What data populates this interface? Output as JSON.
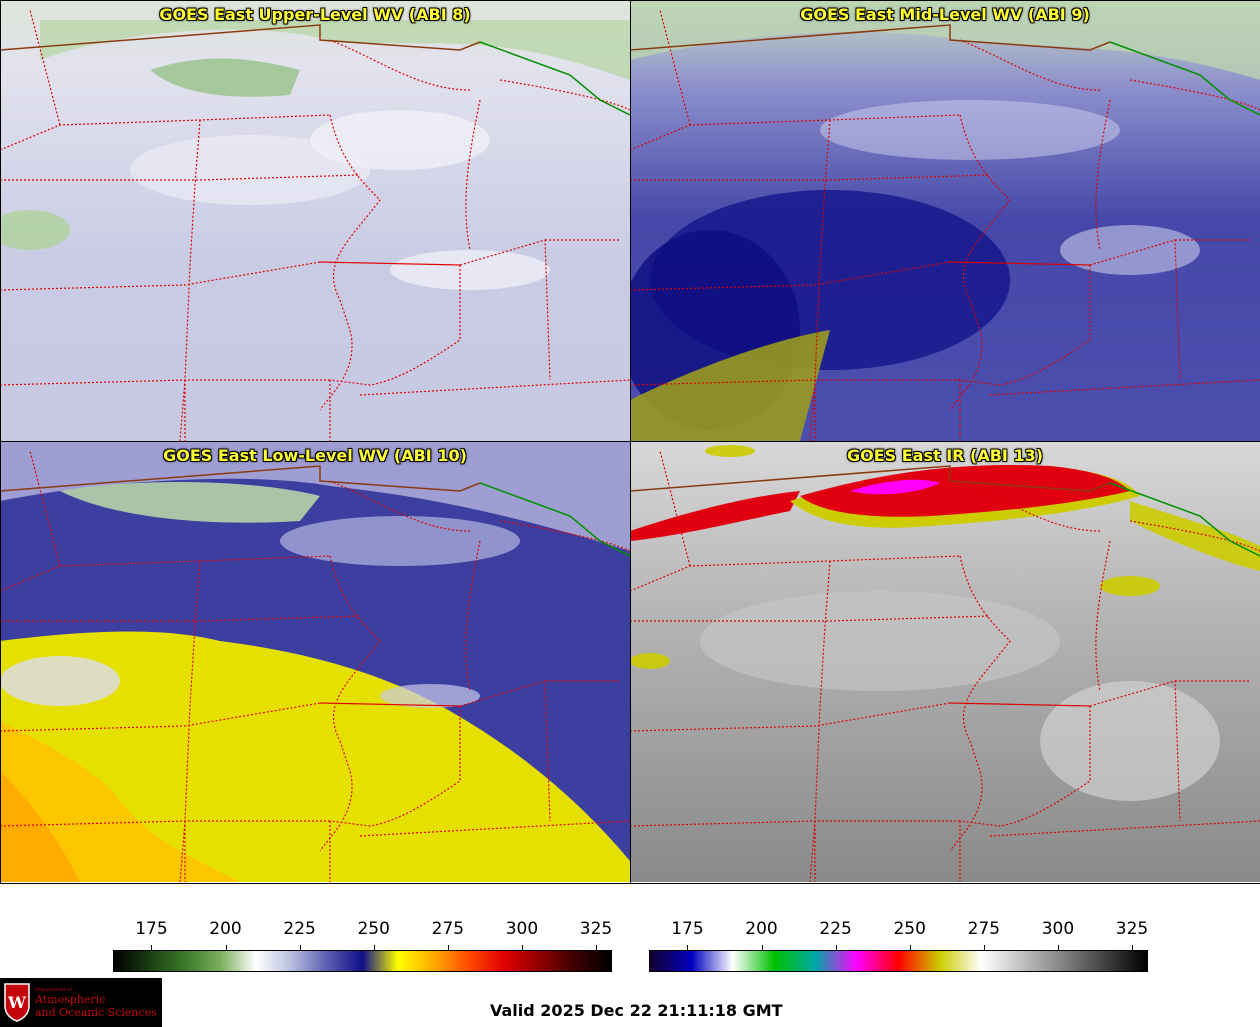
{
  "panels": [
    {
      "id": "p1",
      "title": "GOES East Upper-Level WV (ABI 8)"
    },
    {
      "id": "p2",
      "title": "GOES East Mid-Level WV (ABI 9)"
    },
    {
      "id": "p3",
      "title": "GOES East Low-Level WV (ABI 10)"
    },
    {
      "id": "p4",
      "title": "GOES East IR (ABI 13)"
    }
  ],
  "colorbars": {
    "wv": {
      "ticks": [
        "175",
        "200",
        "225",
        "250",
        "275",
        "300",
        "325"
      ],
      "stops": [
        "#000000",
        "#1a3d12",
        "#3c7a2a",
        "#7aae5a",
        "#ffffff",
        "#b8bddf",
        "#5a5eb0",
        "#101088",
        "#ffff00",
        "#ffaa00",
        "#ff4a00",
        "#e00000",
        "#900000",
        "#3a0000",
        "#000000"
      ]
    },
    "ir": {
      "ticks": [
        "175",
        "200",
        "225",
        "250",
        "275",
        "300",
        "325"
      ],
      "stops": [
        "#150030",
        "#0000c0",
        "#ffffff",
        "#00c000",
        "#00a8a8",
        "#ff00ff",
        "#ff0000",
        "#cccc00",
        "#ffffff",
        "#c0c0c0",
        "#808080",
        "#404040",
        "#000000"
      ]
    }
  },
  "logo": {
    "dept": "Department of",
    "line1": "Atmospheric",
    "line2": "and Oceanic Sciences",
    "mark": "W"
  },
  "footer": {
    "valid": "Valid 2025 Dec 22 21:11:18 GMT"
  },
  "colors": {
    "title": "#ffff33",
    "state_lines": "#e00000",
    "border_us_canada": "#8b3a10",
    "border_canada": "#009000"
  }
}
